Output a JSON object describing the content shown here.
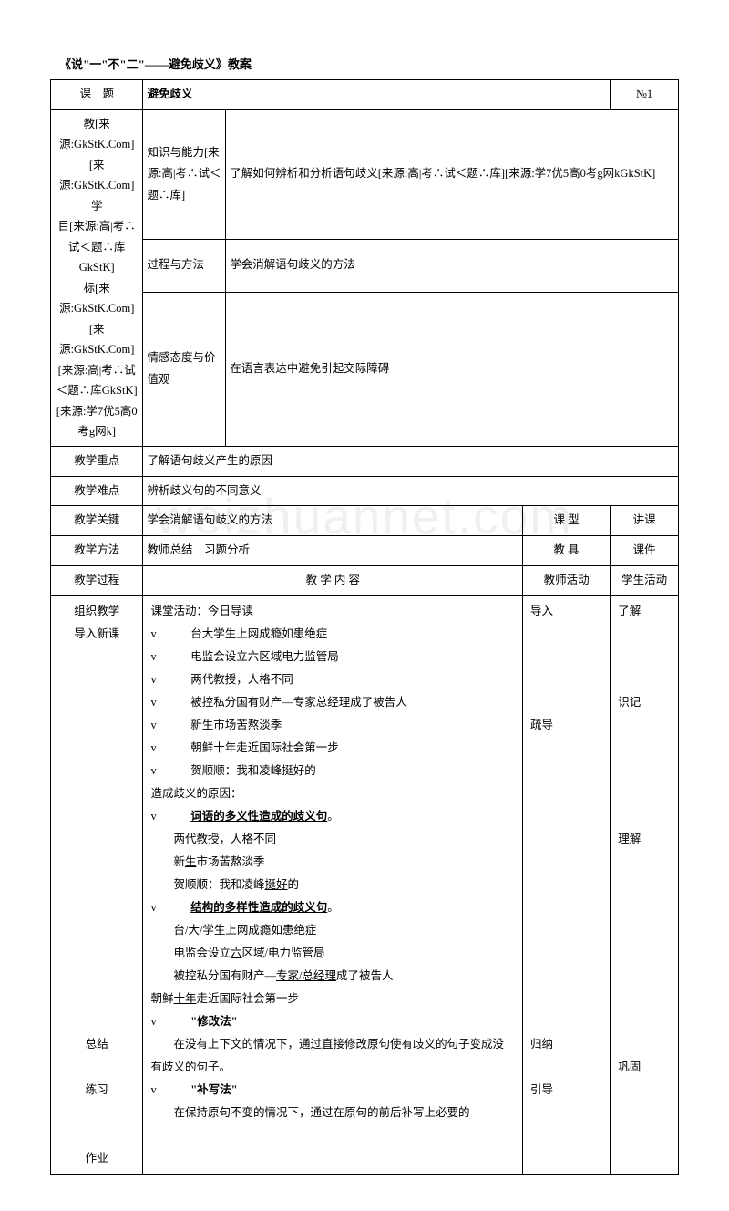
{
  "doc_title": "《说\"一\"不\"二\"——避免歧义》教案",
  "no_label": "№1",
  "header_topic_label": "课　题",
  "header_topic_value": "避免歧义",
  "left_col_label": "教[来源:GkStK.Com][来源:GkStK.Com]\n学\n目[来源:高|考∴试＜题∴库GkStK]\n标[来源:GkStK.Com][来源:GkStK.Com][来源:高|考∴试＜题∴库GkStK][来源:学7优5高0考g网k]",
  "row1_mid": "知识与能力[来源:高|考∴试＜题∴库]",
  "row1_val": "了解如何辨析和分析语句歧义[来源:高|考∴试＜题∴库][来源:学7优5高0考g网kGkStK]",
  "row2_mid": "过程与方法",
  "row2_val": "学会消解语句歧义的方法",
  "row3_mid": "情感态度与价值观",
  "row3_val": "在语言表达中避免引起交际障碍",
  "focus_label": "教学重点",
  "focus_val": "了解语句歧义产生的原因",
  "difficulty_label": "教学难点",
  "difficulty_val": "辨析歧义句的不同意义",
  "key_label": "教学关键",
  "key_val": "学会消解语句歧义的方法",
  "type_label": "课 型",
  "type_val": "讲课",
  "method_label": "教学方法",
  "method_val": "教师总结　习题分析",
  "tool_label": "教 具",
  "tool_val": "课件",
  "process_label": "教学过程",
  "content_label": "教 学 内 容",
  "teacher_label": "教师活动",
  "student_label": "学生活动",
  "left_steps": [
    "组织教学",
    "导入新课",
    "",
    "",
    "",
    "",
    "",
    "",
    "",
    "",
    "",
    "",
    "",
    "",
    "",
    "",
    "",
    "",
    "",
    "总结",
    "",
    "练习",
    "",
    "",
    "作业"
  ],
  "teacher_steps": [
    "导入",
    "",
    "",
    "",
    "",
    "疏导",
    "",
    "",
    "",
    "",
    "",
    "",
    "",
    "",
    "",
    "",
    "",
    "",
    "",
    "归纳",
    "",
    "引导",
    "",
    "",
    ""
  ],
  "student_steps": [
    "了解",
    "",
    "",
    "",
    "识记",
    "",
    "",
    "",
    "",
    "",
    "理解",
    "",
    "",
    "",
    "",
    "",
    "",
    "",
    "",
    "",
    "巩固",
    "",
    "",
    "",
    ""
  ],
  "content_lines": [
    {
      "t": "课堂活动：今日导读",
      "cls": ""
    },
    {
      "t": "v　　　台大学生上网成瘾如患绝症",
      "cls": ""
    },
    {
      "t": "v　　　电监会设立六区域电力监管局",
      "cls": ""
    },
    {
      "t": "v　　　两代教授，人格不同",
      "cls": ""
    },
    {
      "t": "v　　　被控私分国有财产—专家总经理成了被告人",
      "cls": ""
    },
    {
      "t": "v　　　新生市场苦熬淡季",
      "cls": ""
    },
    {
      "t": "v　　　朝鲜十年走近国际社会第一步",
      "cls": ""
    },
    {
      "t": "v　　　贺顺顺：我和凌峰挺好的",
      "cls": ""
    },
    {
      "t": "造成歧义的原因：",
      "cls": ""
    },
    {
      "html": "v　　　<span class='u b'>词语的多义性造成的歧义句</span>。",
      "cls": ""
    },
    {
      "html": "　　两代教授，人格不同",
      "cls": ""
    },
    {
      "html": "　　新<span class='u'>生</span>市场苦熬淡季",
      "cls": ""
    },
    {
      "html": "　　贺顺顺：我和凌峰<span class='u'>挺好</span>的",
      "cls": ""
    },
    {
      "html": "v　　　<span class='u b'>结构的多样性造成的歧义句</span>。",
      "cls": ""
    },
    {
      "t": "　　台/大/学生上网成瘾如患绝症",
      "cls": ""
    },
    {
      "html": "　　电监会设立<span class='u'>六</span>区域/电力监管局",
      "cls": ""
    },
    {
      "html": "　　被控私分国有财产—<span class='u'>专家/总经理</span>成了被告人",
      "cls": ""
    },
    {
      "html": "朝鲜<span class='u'>十年</span>走近国际社会第一步",
      "cls": ""
    },
    {
      "html": "v　　　<span class='b'>\"修改法\"</span>",
      "cls": ""
    },
    {
      "t": "　　在没有上下文的情况下，通过直接修改原句使有歧义的句子变成没有歧义的句子。",
      "cls": ""
    },
    {
      "html": "v　　　<span class='b'>\"补写法\"</span>",
      "cls": ""
    },
    {
      "t": "　　在保持原句不变的情况下，通过在原句的前后补写上必要的",
      "cls": ""
    }
  ],
  "watermark": "weizhuannet.com"
}
